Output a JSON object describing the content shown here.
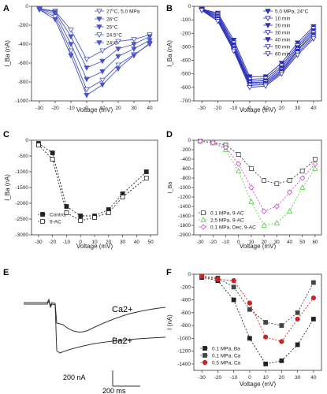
{
  "chart_data": [
    {
      "panel": "A",
      "type": "line",
      "xlabel": "Voltage (mV)",
      "ylabel": "I_Ba (nA)",
      "xlim": [
        -35,
        45
      ],
      "ylim": [
        -1000,
        0
      ],
      "xticks": [
        -30,
        -20,
        -10,
        0,
        10,
        20,
        30,
        40
      ],
      "yticks": [
        0,
        -200,
        -400,
        -600,
        -800,
        -1000
      ],
      "legend_position": "top-right",
      "series": [
        {
          "name": "27°C, 5.0 MPa",
          "marker": "tri-down-open",
          "x": [
            -30,
            -20,
            -10,
            0,
            10,
            20,
            30,
            40
          ],
          "y": [
            -25,
            -50,
            -250,
            -560,
            -470,
            -370,
            -350,
            -300
          ]
        },
        {
          "name": "26°C",
          "marker": "tri-down-filled",
          "x": [
            -30,
            -20,
            -10,
            0,
            10,
            20,
            30,
            40
          ],
          "y": [
            -25,
            -60,
            -320,
            -650,
            -580,
            -450,
            -400,
            -320
          ]
        },
        {
          "name": "25°C",
          "marker": "tri-down-filled",
          "x": [
            -30,
            -20,
            -10,
            0,
            10,
            20,
            30,
            40
          ],
          "y": [
            -30,
            -80,
            -400,
            -770,
            -690,
            -530,
            -450,
            -360
          ]
        },
        {
          "name": "24.5°C",
          "marker": "tri-down-open",
          "x": [
            -30,
            -20,
            -10,
            0,
            10,
            20,
            30,
            40
          ],
          "y": [
            -35,
            -110,
            -470,
            -880,
            -780,
            -620,
            -510,
            -400
          ]
        },
        {
          "name": "24°C",
          "marker": "tri-down-filled",
          "x": [
            -30,
            -20,
            -10,
            0,
            10,
            20,
            30,
            40
          ],
          "y": [
            -35,
            -140,
            -520,
            -940,
            -830,
            -660,
            -520,
            -390
          ]
        }
      ]
    },
    {
      "panel": "B",
      "type": "line",
      "xlabel": "Voltage (mV)",
      "ylabel": "I_Ba (nA)",
      "xlim": [
        -35,
        45
      ],
      "ylim": [
        -700,
        0
      ],
      "xticks": [
        -30,
        -20,
        -10,
        0,
        10,
        20,
        30,
        40
      ],
      "yticks": [
        0,
        -100,
        -200,
        -300,
        -400,
        -500,
        -600,
        -700
      ],
      "legend_position": "top-right",
      "series": [
        {
          "name": "5.0 MPa, 24°C",
          "marker": "tri-down-filled",
          "x": [
            -30,
            -20,
            -10,
            0,
            10,
            20,
            30,
            40
          ],
          "y": [
            -20,
            -50,
            -250,
            -520,
            -520,
            -420,
            -270,
            -150
          ]
        },
        {
          "name": "10 min",
          "marker": "tri-down-open",
          "x": [
            -30,
            -20,
            -10,
            0,
            10,
            20,
            30,
            40
          ],
          "y": [
            -22,
            -60,
            -270,
            -540,
            -535,
            -440,
            -290,
            -165
          ]
        },
        {
          "name": "20 min",
          "marker": "tri-down-filled",
          "x": [
            -30,
            -20,
            -10,
            0,
            10,
            20,
            30,
            40
          ],
          "y": [
            -25,
            -70,
            -285,
            -555,
            -550,
            -455,
            -305,
            -180
          ]
        },
        {
          "name": "30 min",
          "marker": "tri-down-open",
          "x": [
            -30,
            -20,
            -10,
            0,
            10,
            20,
            30,
            40
          ],
          "y": [
            -25,
            -80,
            -300,
            -565,
            -560,
            -470,
            -320,
            -195
          ]
        },
        {
          "name": "40 min",
          "marker": "tri-down-filled",
          "x": [
            -30,
            -20,
            -10,
            0,
            10,
            20,
            30,
            40
          ],
          "y": [
            -28,
            -90,
            -310,
            -575,
            -570,
            -480,
            -330,
            -210
          ]
        },
        {
          "name": "50 min",
          "marker": "tri-down-open",
          "x": [
            -30,
            -20,
            -10,
            0,
            10,
            20,
            30,
            40
          ],
          "y": [
            -30,
            -100,
            -320,
            -585,
            -580,
            -490,
            -345,
            -225
          ]
        },
        {
          "name": "60 min",
          "marker": "tri-down-open",
          "x": [
            -30,
            -20,
            -10,
            0,
            10,
            20,
            30,
            40
          ],
          "y": [
            -30,
            -110,
            -330,
            -600,
            -590,
            -500,
            -360,
            -240
          ]
        }
      ]
    },
    {
      "panel": "C",
      "type": "line",
      "xlabel": "Voltage (mV)",
      "ylabel": "I_Ba (nA)",
      "xlim": [
        -35,
        55
      ],
      "ylim": [
        -3000,
        0
      ],
      "xticks": [
        -30,
        -20,
        -10,
        0,
        10,
        20,
        30,
        40,
        50
      ],
      "yticks": [
        0,
        -500,
        -1000,
        -1500,
        -2000,
        -2500,
        -3000
      ],
      "legend_position": "bottom-left",
      "series": [
        {
          "name": "Control",
          "marker": "square-filled",
          "x": [
            -30,
            -20,
            -10,
            0,
            10,
            20,
            30,
            47
          ],
          "y": [
            -100,
            -400,
            -2100,
            -2400,
            -2400,
            -2200,
            -1700,
            -1000
          ]
        },
        {
          "name": "9-AC",
          "marker": "square-open",
          "x": [
            -30,
            -20,
            -10,
            0,
            10,
            20,
            30,
            47
          ],
          "y": [
            -150,
            -600,
            -2300,
            -2550,
            -2450,
            -2300,
            -1800,
            -1200
          ]
        }
      ]
    },
    {
      "panel": "D",
      "type": "line",
      "xlabel": "Voltage (mV)",
      "ylabel": "I_Ba",
      "xlim": [
        -35,
        65
      ],
      "ylim": [
        -2000,
        0
      ],
      "xticks": [
        -30,
        -20,
        -10,
        0,
        10,
        20,
        30,
        40,
        50,
        60
      ],
      "yticks": [
        0,
        -200,
        -400,
        -600,
        -800,
        -1000,
        -1200,
        -1400,
        -1600,
        -1800,
        -2000
      ],
      "legend_position": "bottom-left",
      "series": [
        {
          "name": "0.1 MPa, 9-AC",
          "marker": "square-open",
          "x": [
            -30,
            -20,
            -10,
            0,
            10,
            20,
            30,
            40,
            50,
            60
          ],
          "y": [
            -20,
            -40,
            -100,
            -300,
            -600,
            -850,
            -920,
            -850,
            -650,
            -400
          ]
        },
        {
          "name": "2.5 MPa, 9-AC",
          "marker": "tri-up-open",
          "x": [
            -30,
            -20,
            -10,
            0,
            10,
            20,
            30,
            40,
            50,
            60
          ],
          "y": [
            -20,
            -60,
            -200,
            -650,
            -1300,
            -1800,
            -1750,
            -1500,
            -1000,
            -600
          ]
        },
        {
          "name": "0.1 MPa, Dec, 9-AC",
          "marker": "diamond-open",
          "x": [
            -30,
            -20,
            -10,
            0,
            10,
            20,
            30,
            40,
            50,
            60
          ],
          "y": [
            -20,
            -50,
            -150,
            -500,
            -1000,
            -1500,
            -1400,
            -1100,
            -800,
            -500
          ]
        }
      ]
    },
    {
      "panel": "E",
      "type": "trace",
      "labels": [
        "Ca2+",
        "Ba2+"
      ],
      "scalebar_current": "200 nA",
      "scalebar_time": "200 ms"
    },
    {
      "panel": "F",
      "type": "line",
      "xlabel": "Voltage (mV)",
      "ylabel": "I (nA)",
      "xlim": [
        -35,
        45
      ],
      "ylim": [
        -1500,
        0
      ],
      "xticks": [
        -30,
        -20,
        -10,
        0,
        10,
        20,
        30,
        40
      ],
      "yticks": [
        0,
        -200,
        -400,
        -600,
        -800,
        -1000,
        -1200,
        -1400
      ],
      "legend_position": "bottom-left",
      "series": [
        {
          "name": "0.1 MPa, Ba",
          "marker": "square-filled",
          "color": "#222222",
          "x": [
            -30,
            -20,
            -10,
            0,
            10,
            20,
            30,
            40
          ],
          "y": [
            -50,
            -100,
            -400,
            -1000,
            -1400,
            -1350,
            -1100,
            -700
          ]
        },
        {
          "name": "0.1 MPa, Ca",
          "marker": "square-filled",
          "color": "#444444",
          "x": [
            -30,
            -20,
            -10,
            0,
            10,
            20,
            30,
            40
          ],
          "y": [
            -30,
            -60,
            -200,
            -550,
            -750,
            -800,
            -600,
            -130
          ]
        },
        {
          "name": "0.5 MPa, Ca",
          "marker": "circle-filled",
          "color": "#cc2222",
          "x": [
            -30,
            -20,
            -10,
            0,
            10,
            20,
            30,
            40
          ],
          "y": [
            -30,
            -80,
            -100,
            -450,
            -980,
            -1050,
            -700,
            -370
          ]
        }
      ]
    }
  ]
}
